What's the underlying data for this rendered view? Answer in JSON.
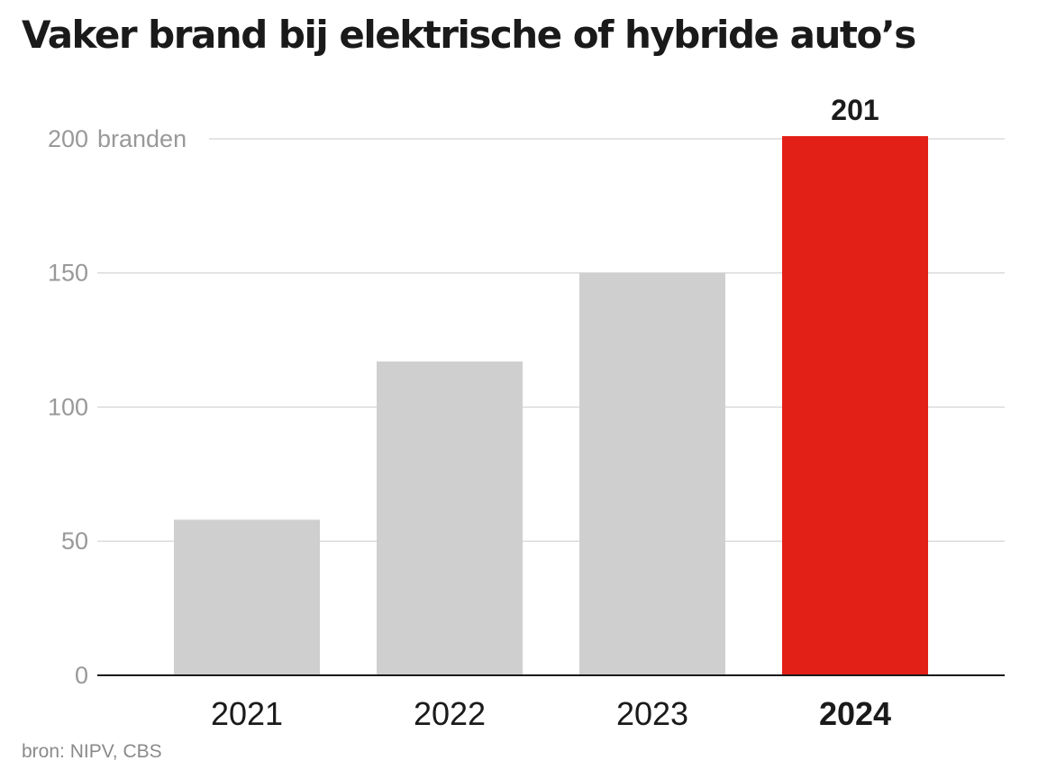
{
  "title": "Vaker brand bij elektrische of hybride auto’s",
  "source": "bron: NIPV, CBS",
  "colors": {
    "bar": "#cfcfcf",
    "highlight": "#e32017",
    "grid": "#d4d4d4",
    "axis": "#1a1a1a",
    "tick_label": "#999999",
    "category_label": "#1a1a1a"
  },
  "chart_data": {
    "type": "bar",
    "categories": [
      "2021",
      "2022",
      "2023",
      "2024"
    ],
    "values": [
      58,
      117,
      150,
      201
    ],
    "highlight_index": 3,
    "value_labels": [
      "",
      "",
      "",
      "201"
    ],
    "yticks": [
      0,
      50,
      100,
      150,
      200
    ],
    "ytick_labels": [
      "0",
      "50",
      "100",
      "150",
      "200"
    ],
    "y_unit": "branden",
    "ylim": [
      0,
      201
    ],
    "grid": true,
    "legend": "none"
  }
}
